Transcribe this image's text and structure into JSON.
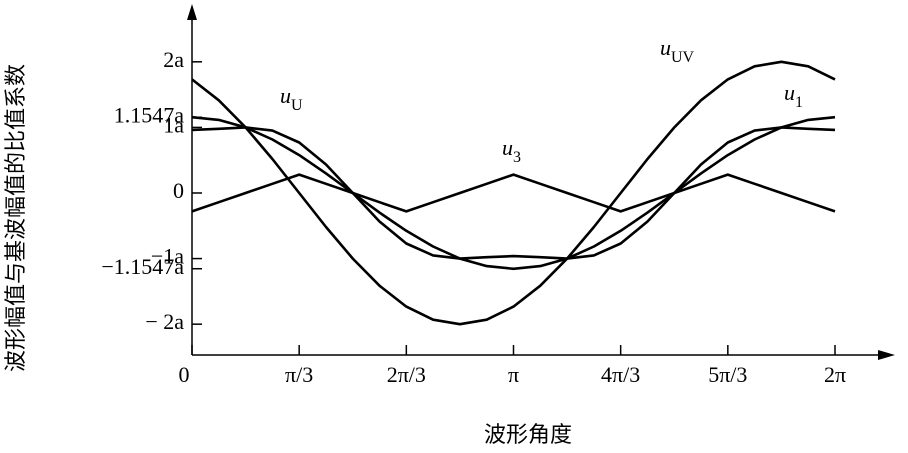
{
  "chart_data": {
    "type": "line",
    "x_label": "波形角度",
    "y_label": "波形幅值与基波幅值的比值系数",
    "x": [
      0,
      0.2618,
      0.5236,
      0.7854,
      1.0472,
      1.309,
      1.5708,
      1.8326,
      2.0944,
      2.3562,
      2.618,
      2.8798,
      3.1416,
      3.4034,
      3.6652,
      3.927,
      4.1888,
      4.4506,
      4.7124,
      4.9742,
      5.236,
      5.4978,
      5.7596,
      6.0214,
      6.2832
    ],
    "series": [
      {
        "name": "uUV",
        "color": "#000000",
        "values": [
          1.732,
          1.414,
          1,
          0.518,
          0,
          -0.518,
          -1,
          -1.414,
          -1.732,
          -1.932,
          -2,
          -1.932,
          -1.732,
          -1.414,
          -1,
          -0.518,
          0,
          0.518,
          1,
          1.414,
          1.732,
          1.932,
          2,
          1.932,
          1.732
        ]
      },
      {
        "name": "uU",
        "color": "#000000",
        "values": [
          0.962,
          0.979,
          1.0,
          0.952,
          0.77,
          0.435,
          0,
          -0.435,
          -0.77,
          -0.952,
          -1.0,
          -0.979,
          -0.962,
          -0.979,
          -1.0,
          -0.952,
          -0.77,
          -0.435,
          0,
          0.435,
          0.77,
          0.952,
          1.0,
          0.979,
          0.962
        ]
      },
      {
        "name": "u3",
        "color": "#000000",
        "values": [
          -0.28,
          -0.14,
          0,
          0.14,
          0.28,
          0.14,
          0,
          -0.14,
          -0.28,
          -0.14,
          0,
          0.14,
          0.28,
          0.14,
          0,
          -0.14,
          -0.28,
          -0.14,
          0,
          0.14,
          0.28,
          0.14,
          0,
          -0.14,
          -0.28
        ]
      },
      {
        "name": "u1",
        "color": "#000000",
        "values": [
          1.155,
          1.115,
          1.0,
          0.816,
          0.577,
          0.299,
          0,
          -0.299,
          -0.577,
          -0.816,
          -1.0,
          -1.115,
          -1.155,
          -1.115,
          -1.0,
          -0.816,
          -0.577,
          -0.299,
          0,
          0.299,
          0.577,
          0.816,
          1.0,
          1.115,
          1.155
        ]
      }
    ],
    "xlim": [
      0,
      6.2832
    ],
    "ylim": [
      -2.47,
      2.79
    ],
    "xticks": [
      0,
      {
        "value": 1.0472,
        "label": "π/3"
      },
      {
        "value": 2.0944,
        "label": "2π/3"
      },
      {
        "value": 3.1416,
        "label": "π"
      },
      {
        "value": 4.1888,
        "label": "4π/3"
      },
      {
        "value": 5.236,
        "label": "5π/3"
      },
      {
        "value": 6.2832,
        "label": "2π"
      }
    ],
    "yticks": [
      {
        "value": 2,
        "label": "2a"
      },
      {
        "value": 1.1547,
        "label": "1.1547a"
      },
      {
        "value": 1,
        "label": "1a"
      },
      0,
      {
        "value": -1,
        "label": "−1a"
      },
      {
        "value": -1.1547,
        "label": "−1.1547a"
      },
      {
        "value": -2,
        "label": "− 2a"
      }
    ]
  }
}
